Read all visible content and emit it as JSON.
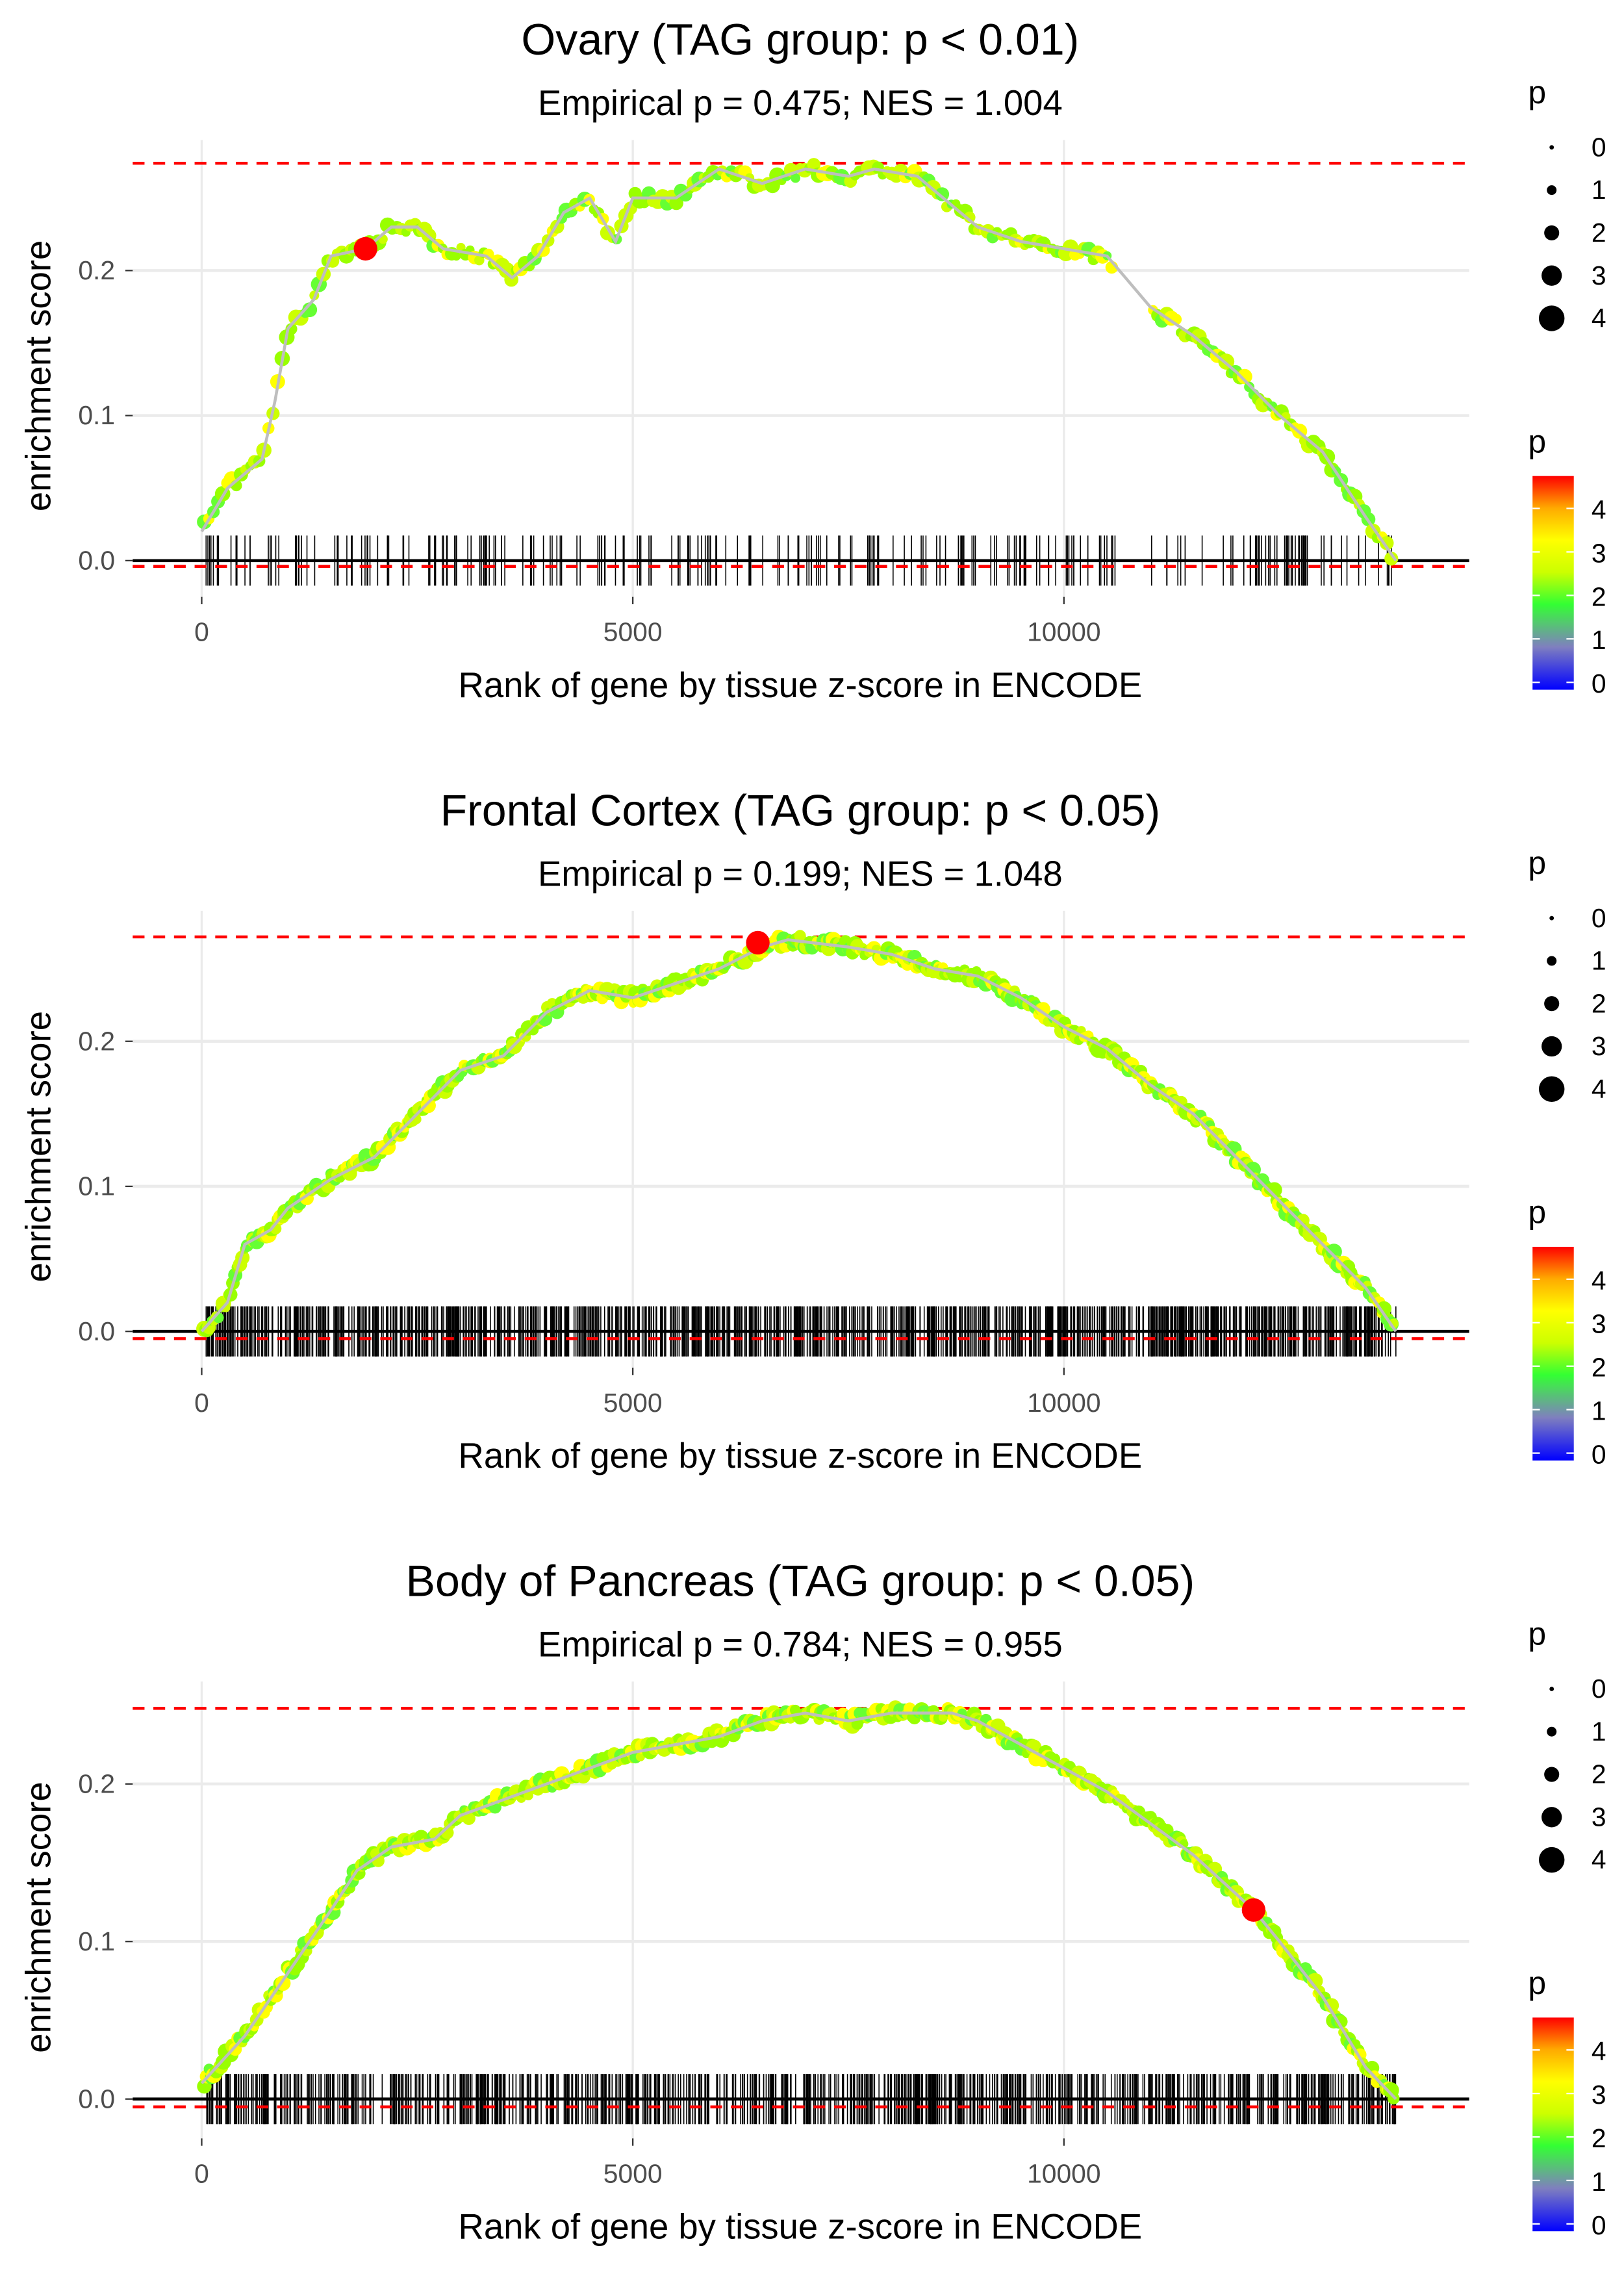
{
  "legend": {
    "size_title": "p",
    "color_title": "p",
    "size_labels": [
      "0",
      "1",
      "2",
      "3",
      "4"
    ],
    "color_labels": [
      "4",
      "3",
      "2",
      "1",
      "0"
    ]
  },
  "colors": {
    "ref_line": "#ff0000",
    "curve": "#bebebe",
    "grid": "#ebebeb",
    "scale": [
      "#0000ff",
      "#7f7fbf",
      "#66cc66",
      "#33ff00",
      "#ccff00",
      "#ffff00",
      "#ffaa00",
      "#ff0000"
    ]
  },
  "chart_data": [
    {
      "type": "line",
      "title": "Ovary (TAG group: p < 0.01)",
      "subtitle": "Empirical p = 0.475; NES = 1.004",
      "xlabel": "Rank of gene by tissue z-score in ENCODE",
      "ylabel": "enrichment score",
      "xlim": [
        -800,
        14700
      ],
      "ylim": [
        -0.025,
        0.29
      ],
      "xticks": [
        "0",
        "5000",
        "10000"
      ],
      "yticks": [
        "0.0",
        "0.1",
        "0.2"
      ],
      "max_es": 0.274,
      "min_es": -0.004,
      "highlight": [
        1900,
        0.215
      ],
      "rug_count": 260,
      "rug_gaps": [
        [
          10600,
          11000
        ]
      ],
      "points": [
        [
          0,
          0.02
        ],
        [
          300,
          0.05
        ],
        [
          500,
          0.06
        ],
        [
          700,
          0.07
        ],
        [
          850,
          0.11
        ],
        [
          1000,
          0.16
        ],
        [
          1300,
          0.18
        ],
        [
          1500,
          0.21
        ],
        [
          1900,
          0.215
        ],
        [
          2200,
          0.23
        ],
        [
          2500,
          0.23
        ],
        [
          2800,
          0.215
        ],
        [
          3300,
          0.21
        ],
        [
          3600,
          0.195
        ],
        [
          3900,
          0.21
        ],
        [
          4200,
          0.24
        ],
        [
          4500,
          0.25
        ],
        [
          4800,
          0.22
        ],
        [
          5000,
          0.25
        ],
        [
          5500,
          0.25
        ],
        [
          6000,
          0.27
        ],
        [
          6500,
          0.26
        ],
        [
          7000,
          0.27
        ],
        [
          7500,
          0.265
        ],
        [
          7800,
          0.27
        ],
        [
          8300,
          0.265
        ],
        [
          8600,
          0.25
        ],
        [
          9000,
          0.23
        ],
        [
          9500,
          0.22
        ],
        [
          10000,
          0.215
        ],
        [
          10500,
          0.21
        ],
        [
          11000,
          0.175
        ],
        [
          11500,
          0.155
        ],
        [
          12000,
          0.13
        ],
        [
          12500,
          0.1
        ],
        [
          13000,
          0.075
        ],
        [
          13500,
          0.03
        ],
        [
          13850,
          0.0
        ]
      ]
    },
    {
      "type": "line",
      "title": "Frontal Cortex (TAG group: p < 0.05)",
      "subtitle": "Empirical p = 0.199; NES = 1.048",
      "xlabel": "Rank of gene by tissue z-score in ENCODE",
      "ylabel": "enrichment score",
      "xlim": [
        -800,
        14700
      ],
      "ylim": [
        -0.025,
        0.29
      ],
      "xticks": [
        "0",
        "5000",
        "10000"
      ],
      "yticks": [
        "0.0",
        "0.1",
        "0.2"
      ],
      "max_es": 0.272,
      "min_es": -0.005,
      "highlight": [
        6450,
        0.268
      ],
      "rug_count": 1100,
      "rug_gaps": [],
      "points": [
        [
          0,
          0
        ],
        [
          300,
          0.02
        ],
        [
          500,
          0.06
        ],
        [
          800,
          0.07
        ],
        [
          1000,
          0.085
        ],
        [
          1500,
          0.105
        ],
        [
          2000,
          0.12
        ],
        [
          2500,
          0.15
        ],
        [
          3000,
          0.18
        ],
        [
          3500,
          0.19
        ],
        [
          4000,
          0.22
        ],
        [
          4500,
          0.235
        ],
        [
          5000,
          0.23
        ],
        [
          5500,
          0.24
        ],
        [
          6000,
          0.25
        ],
        [
          6500,
          0.265
        ],
        [
          6800,
          0.27
        ],
        [
          7500,
          0.265
        ],
        [
          8000,
          0.26
        ],
        [
          8500,
          0.25
        ],
        [
          9000,
          0.245
        ],
        [
          9500,
          0.23
        ],
        [
          10000,
          0.21
        ],
        [
          10500,
          0.195
        ],
        [
          11000,
          0.17
        ],
        [
          11500,
          0.15
        ],
        [
          12000,
          0.12
        ],
        [
          12500,
          0.09
        ],
        [
          13000,
          0.06
        ],
        [
          13500,
          0.03
        ],
        [
          13850,
          0
        ]
      ]
    },
    {
      "type": "line",
      "title": "Body of Pancreas (TAG group: p < 0.05)",
      "subtitle": "Empirical p = 0.784; NES = 0.955",
      "xlabel": "Rank of gene by tissue z-score in ENCODE",
      "ylabel": "enrichment score",
      "xlim": [
        -800,
        14700
      ],
      "ylim": [
        -0.025,
        0.265
      ],
      "xticks": [
        "0",
        "5000",
        "10000"
      ],
      "yticks": [
        "0.0",
        "0.1",
        "0.2"
      ],
      "max_es": 0.248,
      "min_es": -0.005,
      "highlight": [
        12200,
        0.12
      ],
      "rug_count": 900,
      "rug_gaps": [],
      "points": [
        [
          0,
          0.01
        ],
        [
          500,
          0.04
        ],
        [
          1000,
          0.08
        ],
        [
          1500,
          0.12
        ],
        [
          1800,
          0.145
        ],
        [
          2200,
          0.16
        ],
        [
          2700,
          0.165
        ],
        [
          3000,
          0.18
        ],
        [
          3500,
          0.19
        ],
        [
          4000,
          0.2
        ],
        [
          4500,
          0.21
        ],
        [
          5000,
          0.22
        ],
        [
          5500,
          0.225
        ],
        [
          6000,
          0.23
        ],
        [
          6500,
          0.24
        ],
        [
          7000,
          0.245
        ],
        [
          7500,
          0.24
        ],
        [
          8000,
          0.245
        ],
        [
          8700,
          0.245
        ],
        [
          9000,
          0.24
        ],
        [
          9500,
          0.225
        ],
        [
          10000,
          0.21
        ],
        [
          10500,
          0.195
        ],
        [
          11000,
          0.175
        ],
        [
          11500,
          0.155
        ],
        [
          12000,
          0.13
        ],
        [
          12200,
          0.12
        ],
        [
          12500,
          0.1
        ],
        [
          13000,
          0.065
        ],
        [
          13500,
          0.02
        ],
        [
          13850,
          0
        ]
      ]
    }
  ]
}
